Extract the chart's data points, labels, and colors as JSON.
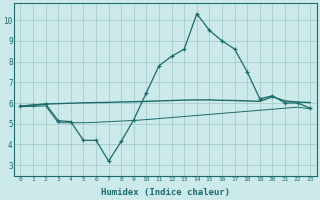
{
  "xlabel": "Humidex (Indice chaleur)",
  "bg_color": "#cceaea",
  "grid_color": "#aacccc",
  "line_color": "#1a6b6b",
  "xlim": [
    -0.5,
    23.5
  ],
  "ylim": [
    2.5,
    10.8
  ],
  "yticks": [
    3,
    4,
    5,
    6,
    7,
    8,
    9,
    10
  ],
  "xticks": [
    0,
    1,
    2,
    3,
    4,
    5,
    6,
    7,
    8,
    9,
    10,
    11,
    12,
    13,
    14,
    15,
    16,
    17,
    18,
    19,
    20,
    21,
    22,
    23
  ],
  "line1_x": [
    0,
    1,
    2,
    3,
    4,
    5,
    6,
    7,
    8,
    9,
    10,
    11,
    12,
    13,
    14,
    15,
    16,
    17,
    18,
    19,
    20,
    21,
    22,
    23
  ],
  "line1_y": [
    5.85,
    5.9,
    5.95,
    5.15,
    5.1,
    4.2,
    4.2,
    3.2,
    4.15,
    5.2,
    6.5,
    7.8,
    8.25,
    8.6,
    10.3,
    9.5,
    9.0,
    8.6,
    7.5,
    6.2,
    6.35,
    6.0,
    6.0,
    5.75
  ],
  "line2_x": [
    0,
    1,
    2,
    3,
    4,
    5,
    6,
    7,
    8,
    9,
    10,
    11,
    12,
    13,
    14,
    15,
    16,
    17,
    18,
    19,
    20,
    21,
    22,
    23
  ],
  "line2_y": [
    5.85,
    5.9,
    5.95,
    5.97,
    5.99,
    6.01,
    6.02,
    6.03,
    6.05,
    6.06,
    6.08,
    6.1,
    6.12,
    6.14,
    6.15,
    6.15,
    6.13,
    6.12,
    6.1,
    6.08,
    6.3,
    6.1,
    6.05,
    6.02
  ],
  "line3_x": [
    0,
    1,
    2,
    3,
    4,
    5,
    6,
    7,
    8,
    9,
    10,
    11,
    12,
    13,
    14,
    15,
    16,
    17,
    18,
    19,
    20,
    21,
    22,
    23
  ],
  "line3_y": [
    5.82,
    5.84,
    5.86,
    5.05,
    5.05,
    5.05,
    5.07,
    5.1,
    5.13,
    5.16,
    5.2,
    5.25,
    5.3,
    5.35,
    5.4,
    5.45,
    5.5,
    5.55,
    5.6,
    5.65,
    5.7,
    5.75,
    5.8,
    5.72
  ]
}
